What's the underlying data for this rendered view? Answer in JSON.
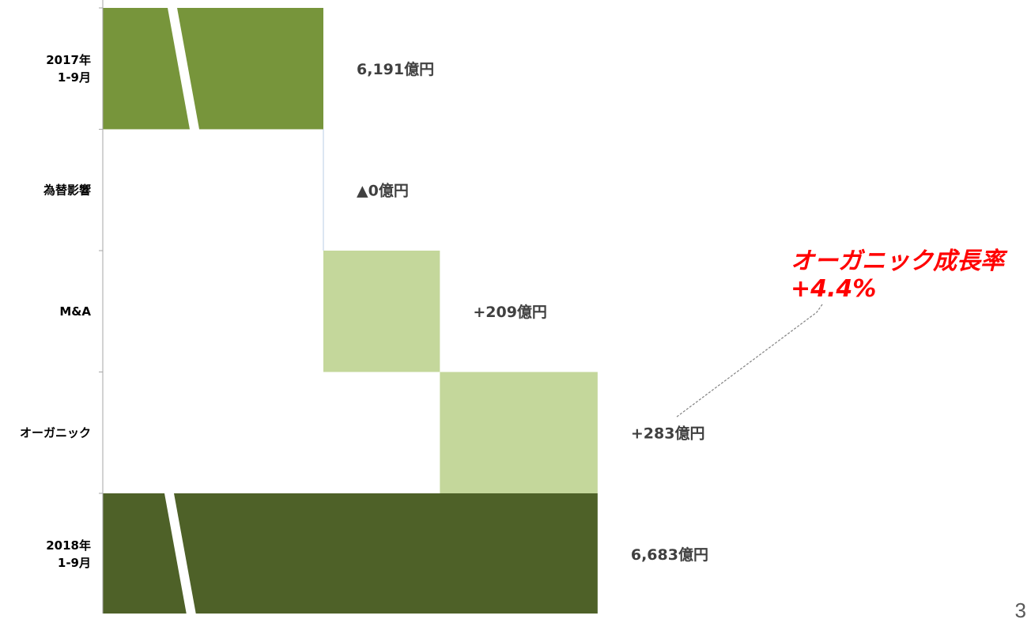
{
  "chart_data": {
    "type": "bar",
    "orientation": "horizontal",
    "style": "waterfall",
    "axis_break": true,
    "categories": [
      "2017年\n1-9月",
      "為替影響",
      "M&A",
      "オーガニック",
      "2018年\n1-9月"
    ],
    "values": [
      6191,
      0,
      209,
      283,
      6683
    ],
    "kinds": [
      "total",
      "delta",
      "delta",
      "delta",
      "total"
    ],
    "data_labels": [
      "6,191億円",
      "▲0億円",
      "+209億円",
      "+283億円",
      "6,683億円"
    ],
    "annotation": {
      "lines": [
        "オーガニック成長率",
        "+4.4%"
      ],
      "target_category": "オーガニック"
    },
    "title": "",
    "xlabel": "",
    "ylabel": ""
  },
  "colors": {
    "start_bar": "#77953b",
    "delta_bar": "#c4d79b",
    "end_bar": "#4e6128",
    "annotation": "#ff0000",
    "value_text": "#404040",
    "axis": "#a6a6a6",
    "connector": "#b8cce4"
  },
  "page_number": "3"
}
